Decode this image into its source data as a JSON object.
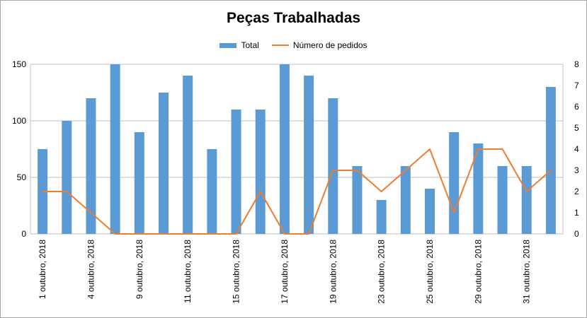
{
  "chart_data": {
    "type": "bar+line",
    "title": "Peças Trabalhadas",
    "legend": [
      "Total",
      "Número de pedidos"
    ],
    "legend_position": "top",
    "colors": {
      "bar": "#5b9bd5",
      "line": "#ed7d31",
      "grid": "#bfbfbf"
    },
    "categories": [
      "1 outubro, 2018",
      "",
      "4 outubro, 2018",
      "",
      "9 outubro, 2018",
      "",
      "11 outubro, 2018",
      "",
      "15 outubro, 2018",
      "",
      "17 outubro, 2018",
      "",
      "19 outubro, 2018",
      "",
      "23 outubro, 2018",
      "",
      "25 outubro, 2018",
      "",
      "29 outubro, 2018",
      "",
      "31 outubro, 2018",
      ""
    ],
    "series": [
      {
        "name": "Total",
        "axis": "left",
        "type": "bar",
        "values": [
          75,
          100,
          120,
          150,
          90,
          125,
          140,
          75,
          110,
          110,
          150,
          140,
          120,
          60,
          30,
          60,
          40,
          90,
          80,
          60,
          60,
          130
        ]
      },
      {
        "name": "Número de pedidos",
        "axis": "right",
        "type": "line",
        "values": [
          2,
          2,
          1,
          0,
          0,
          0,
          0,
          0,
          0,
          2,
          0,
          0,
          3,
          3,
          2,
          3,
          4,
          1,
          4,
          4,
          2,
          3
        ]
      }
    ],
    "y_left": {
      "min": 0,
      "max": 150,
      "ticks": [
        0,
        50,
        100,
        150
      ]
    },
    "y_right": {
      "min": 0,
      "max": 8,
      "ticks": [
        0,
        1,
        2,
        3,
        4,
        5,
        6,
        7,
        8
      ]
    },
    "grid": true
  }
}
